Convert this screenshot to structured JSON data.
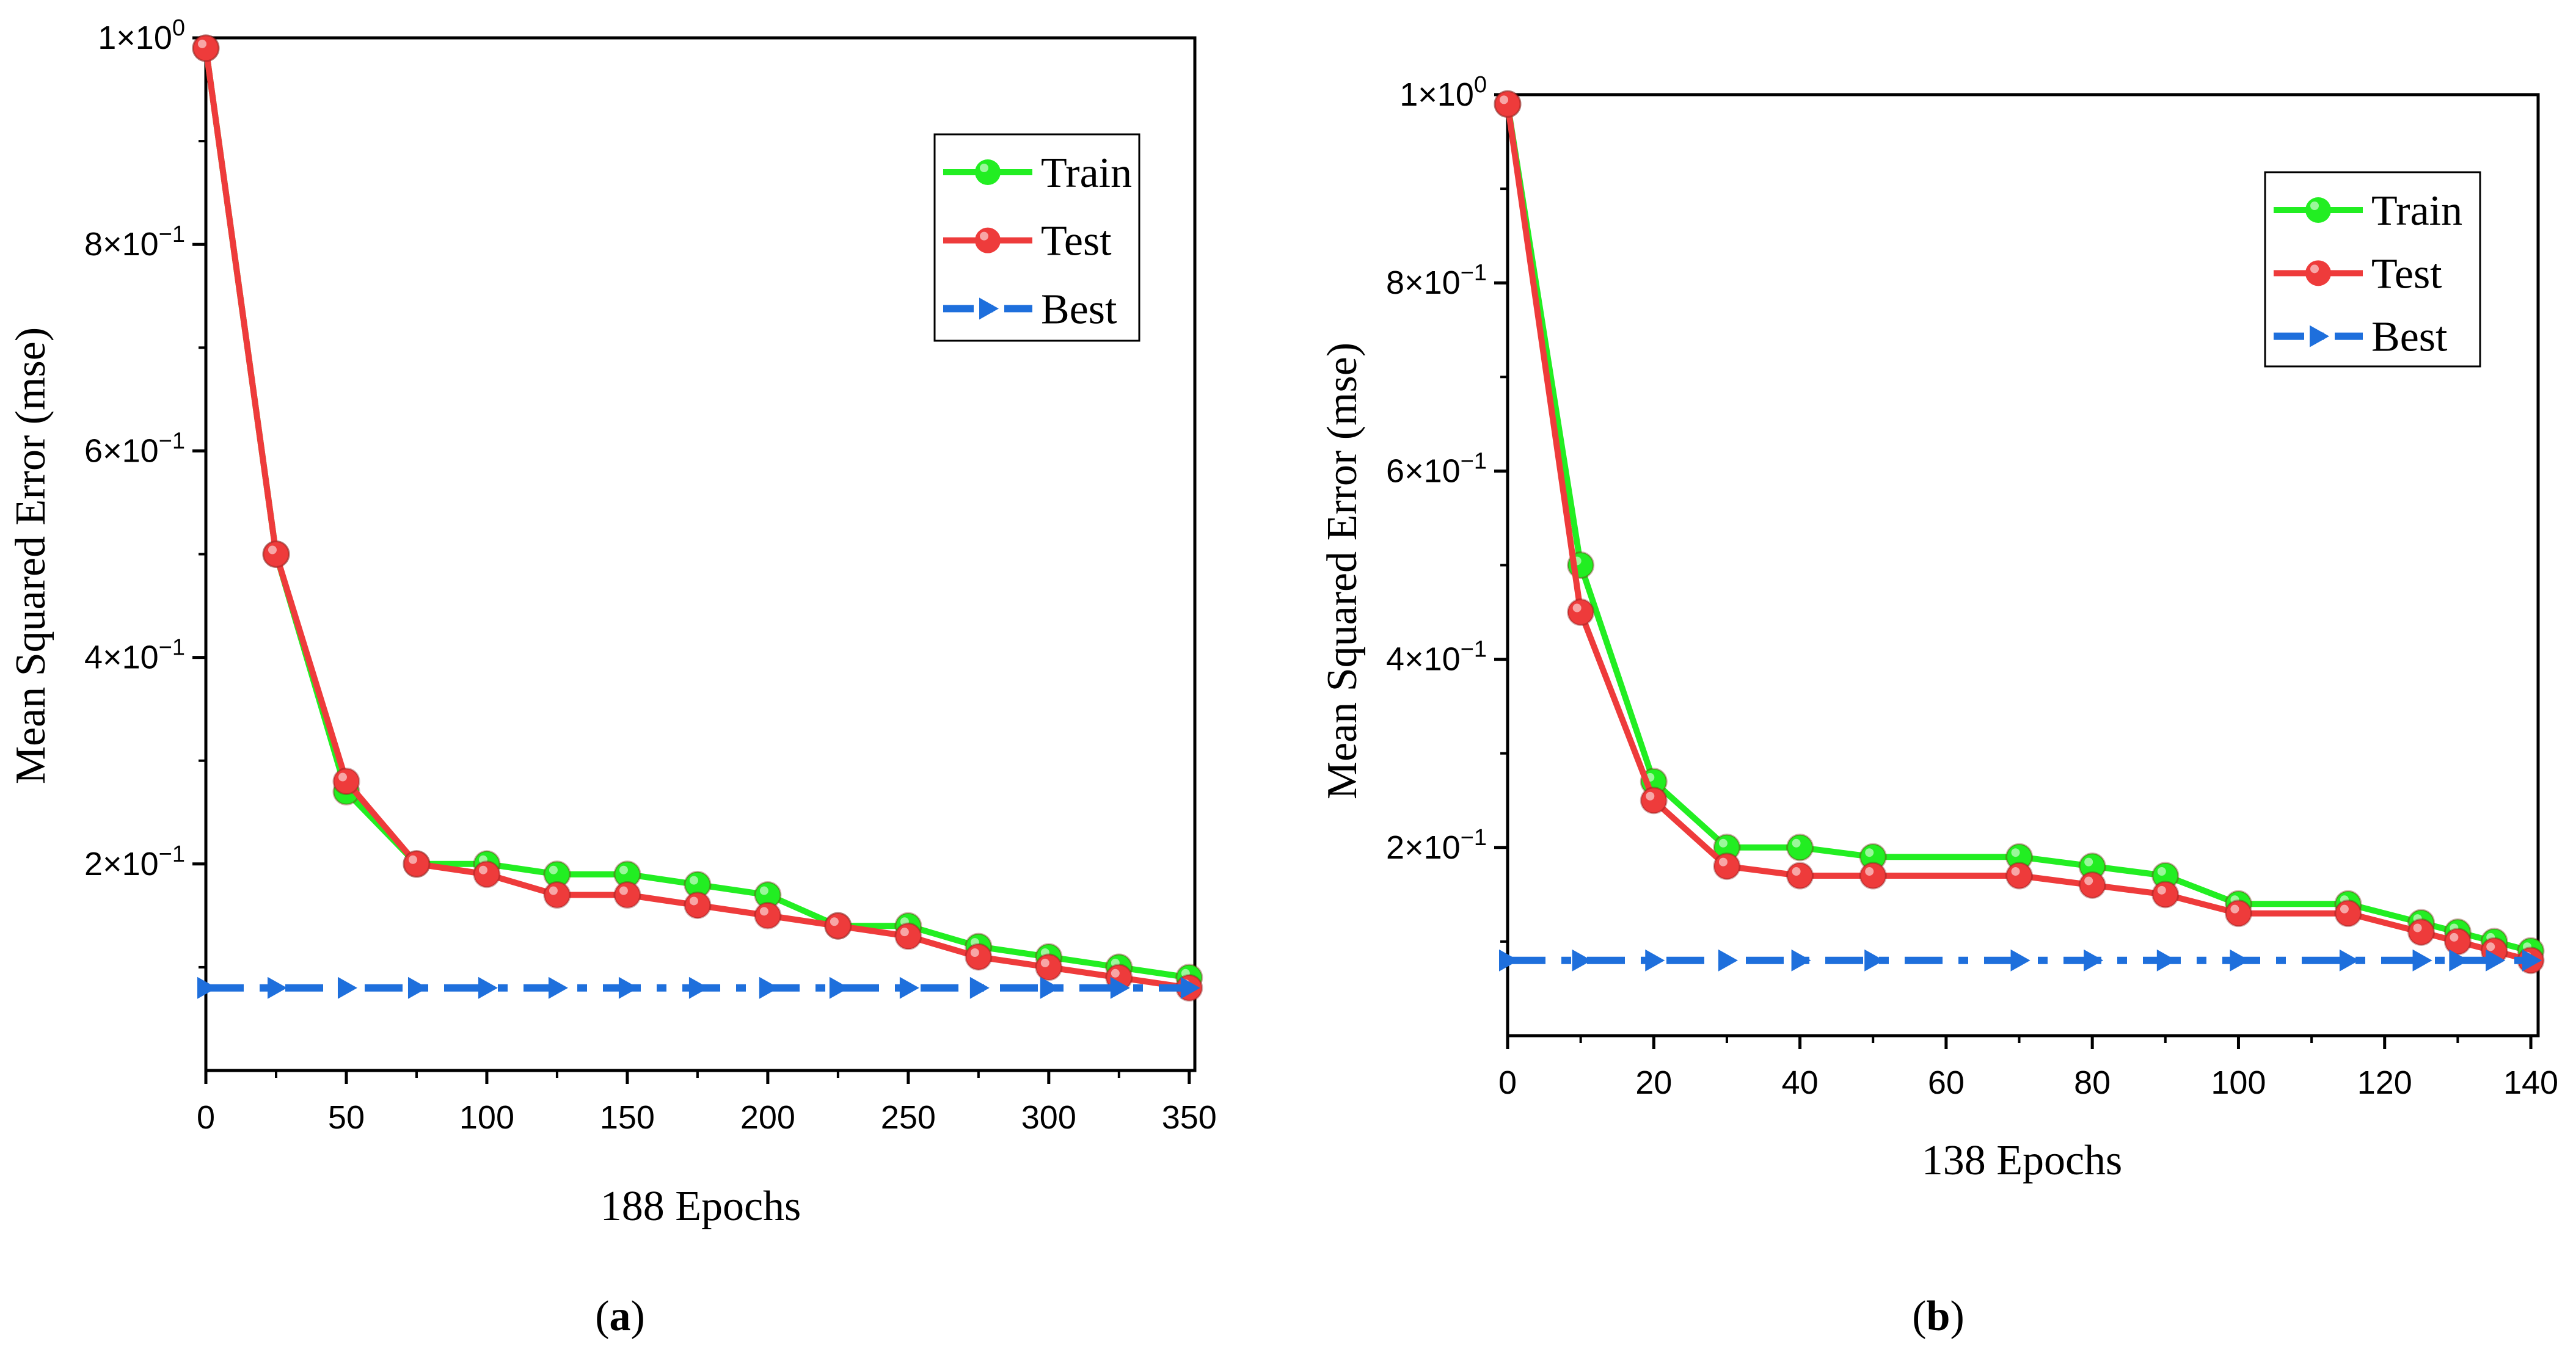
{
  "chart_data": [
    {
      "type": "line",
      "panel_label": "a",
      "title": "",
      "xlabel": "188 Epochs",
      "ylabel": "Mean Squared Error (mse)",
      "xlim": [
        0,
        352
      ],
      "ylim": [
        0.0,
        1.0
      ],
      "x_ticks": [
        0,
        50,
        100,
        150,
        200,
        250,
        300,
        350
      ],
      "x_tick_labels": [
        "0",
        "50",
        "100",
        "150",
        "200",
        "250",
        "300",
        "350"
      ],
      "y_ticks": [
        0.2,
        0.4,
        0.6,
        0.8,
        1.0
      ],
      "y_tick_labels": [
        {
          "base": "2×10",
          "exp": "−1"
        },
        {
          "base": "4×10",
          "exp": "−1"
        },
        {
          "base": "6×10",
          "exp": "−1"
        },
        {
          "base": "8×10",
          "exp": "−1"
        },
        {
          "base": "1×10",
          "exp": "0"
        }
      ],
      "legend": {
        "position": "top-right",
        "entries": [
          "Train",
          "Test",
          "Best"
        ]
      },
      "series": [
        {
          "name": "Train",
          "color": "#22ee22",
          "style": "solid-circle",
          "x": [
            0,
            25,
            50,
            75,
            100,
            125,
            150,
            175,
            200,
            225,
            250,
            275,
            300,
            325,
            350
          ],
          "y": [
            0.99,
            0.5,
            0.27,
            0.2,
            0.2,
            0.19,
            0.19,
            0.18,
            0.17,
            0.14,
            0.14,
            0.12,
            0.11,
            0.1,
            0.09
          ]
        },
        {
          "name": "Test",
          "color": "#ee3b3b",
          "style": "solid-circle",
          "x": [
            0,
            25,
            50,
            75,
            100,
            125,
            150,
            175,
            200,
            225,
            250,
            275,
            300,
            325,
            350
          ],
          "y": [
            0.99,
            0.5,
            0.28,
            0.2,
            0.19,
            0.17,
            0.17,
            0.16,
            0.15,
            0.14,
            0.13,
            0.11,
            0.1,
            0.09,
            0.08
          ]
        },
        {
          "name": "Best",
          "color": "#1e6fdc",
          "style": "dashdot-triangle",
          "x": [
            0,
            25,
            50,
            75,
            100,
            125,
            150,
            175,
            200,
            225,
            250,
            275,
            300,
            325,
            350
          ],
          "y": [
            0.08,
            0.08,
            0.08,
            0.08,
            0.08,
            0.08,
            0.08,
            0.08,
            0.08,
            0.08,
            0.08,
            0.08,
            0.08,
            0.08,
            0.08
          ]
        }
      ]
    },
    {
      "type": "line",
      "panel_label": "b",
      "title": "",
      "xlabel": "138 Epochs",
      "ylabel": "Mean Squared Error (mse)",
      "xlim": [
        0,
        141
      ],
      "ylim": [
        0.0,
        1.0
      ],
      "x_ticks": [
        0,
        20,
        40,
        60,
        80,
        100,
        120,
        140
      ],
      "x_tick_labels": [
        "0",
        "20",
        "40",
        "60",
        "80",
        "100",
        "120",
        "140"
      ],
      "y_ticks": [
        0.2,
        0.4,
        0.6,
        0.8,
        1.0
      ],
      "y_tick_labels": [
        {
          "base": "2×10",
          "exp": "−1"
        },
        {
          "base": "4×10",
          "exp": "−1"
        },
        {
          "base": "6×10",
          "exp": "−1"
        },
        {
          "base": "8×10",
          "exp": "−1"
        },
        {
          "base": "1×10",
          "exp": "0"
        }
      ],
      "legend": {
        "position": "top-right",
        "entries": [
          "Train",
          "Test",
          "Best"
        ]
      },
      "series": [
        {
          "name": "Train",
          "color": "#22ee22",
          "style": "solid-circle",
          "x": [
            0,
            10,
            20,
            30,
            40,
            50,
            70,
            80,
            90,
            100,
            115,
            125,
            130,
            135,
            140
          ],
          "y": [
            0.99,
            0.5,
            0.27,
            0.2,
            0.2,
            0.19,
            0.19,
            0.18,
            0.17,
            0.14,
            0.14,
            0.12,
            0.11,
            0.1,
            0.09
          ]
        },
        {
          "name": "Test",
          "color": "#ee3b3b",
          "style": "solid-circle",
          "x": [
            0,
            10,
            20,
            30,
            40,
            50,
            70,
            80,
            90,
            100,
            115,
            125,
            130,
            135,
            140
          ],
          "y": [
            0.99,
            0.45,
            0.25,
            0.18,
            0.17,
            0.17,
            0.17,
            0.16,
            0.15,
            0.13,
            0.13,
            0.11,
            0.1,
            0.09,
            0.08
          ]
        },
        {
          "name": "Best",
          "color": "#1e6fdc",
          "style": "dashdot-triangle",
          "x": [
            0,
            10,
            20,
            30,
            40,
            50,
            70,
            80,
            90,
            100,
            115,
            125,
            130,
            135,
            140
          ],
          "y": [
            0.08,
            0.08,
            0.08,
            0.08,
            0.08,
            0.08,
            0.08,
            0.08,
            0.08,
            0.08,
            0.08,
            0.08,
            0.08,
            0.08,
            0.08
          ]
        }
      ]
    }
  ]
}
